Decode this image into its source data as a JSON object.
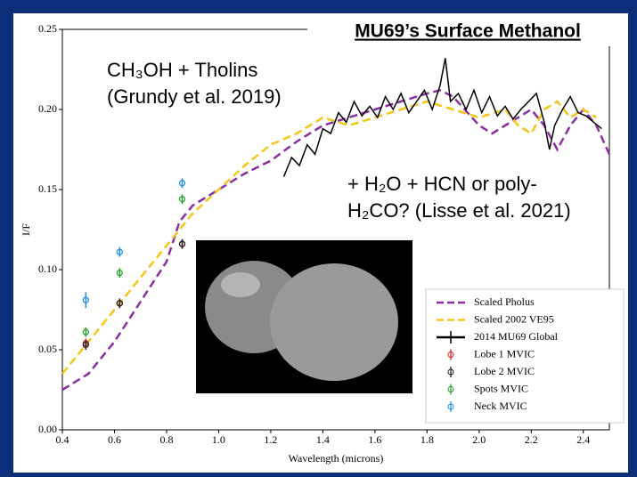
{
  "chart_data": {
    "type": "line",
    "title": "MU69’s Surface Methanol",
    "annotations": [
      "CH₃OH + Tholins",
      "(Grundy et al. 2019)",
      "+ H₂O + HCN or poly-",
      "H₂CO? (Lisse et al. 2021)"
    ],
    "xlabel": "Wavelength (microns)",
    "ylabel": "I/F",
    "xlim": [
      0.4,
      2.5
    ],
    "ylim": [
      0,
      0.25
    ],
    "xticks": [
      0.4,
      0.6,
      0.8,
      {
        "value": 1,
        "label": "1.0"
      },
      1.2,
      1.4,
      1.6,
      1.8,
      {
        "value": 2,
        "label": "2.0"
      },
      2.2,
      2.4
    ],
    "yticks": [
      {
        "value": 0,
        "label": "0.00"
      },
      0.05,
      {
        "value": 0.1,
        "label": "0.10"
      },
      0.15,
      {
        "value": 0.2,
        "label": "0.20"
      },
      0.25
    ],
    "legend": "lower right",
    "series": [
      {
        "name": "Scaled Pholus",
        "color": "#8b2fa0",
        "style": "dashed",
        "x": [
          0.4,
          0.5,
          0.6,
          0.7,
          0.8,
          0.85,
          0.9,
          0.95,
          1.0,
          1.1,
          1.2,
          1.3,
          1.4,
          1.5,
          1.6,
          1.7,
          1.8,
          1.85,
          1.9,
          2.0,
          2.05,
          2.1,
          2.2,
          2.25,
          2.3,
          2.35,
          2.4,
          2.45,
          2.5
        ],
        "values": [
          0.025,
          0.035,
          0.055,
          0.08,
          0.105,
          0.13,
          0.14,
          0.145,
          0.15,
          0.16,
          0.168,
          0.18,
          0.19,
          0.195,
          0.2,
          0.205,
          0.21,
          0.212,
          0.208,
          0.19,
          0.185,
          0.19,
          0.2,
          0.19,
          0.175,
          0.19,
          0.2,
          0.19,
          0.172
        ]
      },
      {
        "name": "Scaled 2002 VE95",
        "color": "#f5c518",
        "style": "dashed",
        "x": [
          0.4,
          0.5,
          0.6,
          0.7,
          0.8,
          0.85,
          0.9,
          1.0,
          1.1,
          1.2,
          1.3,
          1.4,
          1.5,
          1.6,
          1.7,
          1.8,
          1.9,
          2.0,
          2.1,
          2.15,
          2.2,
          2.25,
          2.3,
          2.35,
          2.4,
          2.45
        ],
        "values": [
          0.035,
          0.055,
          0.075,
          0.095,
          0.115,
          0.125,
          0.135,
          0.15,
          0.165,
          0.178,
          0.185,
          0.195,
          0.19,
          0.195,
          0.2,
          0.205,
          0.2,
          0.195,
          0.2,
          0.19,
          0.185,
          0.2,
          0.205,
          0.195,
          0.2,
          0.195
        ]
      },
      {
        "name": "2014 MU69 Global",
        "color": "#000000",
        "style": "solid",
        "x": [
          1.25,
          1.28,
          1.31,
          1.34,
          1.37,
          1.4,
          1.43,
          1.46,
          1.49,
          1.52,
          1.55,
          1.58,
          1.61,
          1.64,
          1.67,
          1.7,
          1.73,
          1.76,
          1.79,
          1.82,
          1.85,
          1.87,
          1.89,
          1.92,
          1.95,
          1.98,
          2.01,
          2.04,
          2.07,
          2.1,
          2.13,
          2.16,
          2.19,
          2.22,
          2.25,
          2.27,
          2.29,
          2.32,
          2.35,
          2.38,
          2.41,
          2.44,
          2.47
        ],
        "values": [
          0.158,
          0.17,
          0.165,
          0.178,
          0.172,
          0.188,
          0.185,
          0.198,
          0.192,
          0.205,
          0.196,
          0.202,
          0.195,
          0.208,
          0.2,
          0.21,
          0.198,
          0.205,
          0.212,
          0.2,
          0.215,
          0.232,
          0.205,
          0.21,
          0.2,
          0.212,
          0.198,
          0.208,
          0.196,
          0.202,
          0.194,
          0.2,
          0.205,
          0.21,
          0.192,
          0.175,
          0.19,
          0.2,
          0.208,
          0.198,
          0.196,
          0.192,
          0.188
        ]
      },
      {
        "name": "Lobe 1 MVIC",
        "color": "#d62728",
        "style": "points",
        "x": [
          0.49,
          0.62,
          0.86
        ],
        "values": [
          0.054,
          0.079,
          0.116
        ],
        "errors": [
          0.003,
          0.003,
          0.003
        ]
      },
      {
        "name": "Lobe 2 MVIC",
        "color": "#222222",
        "style": "points",
        "x": [
          0.49,
          0.62,
          0.86
        ],
        "values": [
          0.053,
          0.079,
          0.116
        ],
        "errors": [
          0.003,
          0.003,
          0.003
        ]
      },
      {
        "name": "Spots MVIC",
        "color": "#2ca02c",
        "style": "points",
        "x": [
          0.49,
          0.62,
          0.86
        ],
        "values": [
          0.061,
          0.098,
          0.144
        ],
        "errors": [
          0.003,
          0.003,
          0.003
        ]
      },
      {
        "name": "Neck MVIC",
        "color": "#1f8fe8",
        "style": "points",
        "x": [
          0.49,
          0.62,
          0.86
        ],
        "values": [
          0.081,
          0.111,
          0.154
        ],
        "errors": [
          0.005,
          0.003,
          0.003
        ]
      }
    ]
  }
}
